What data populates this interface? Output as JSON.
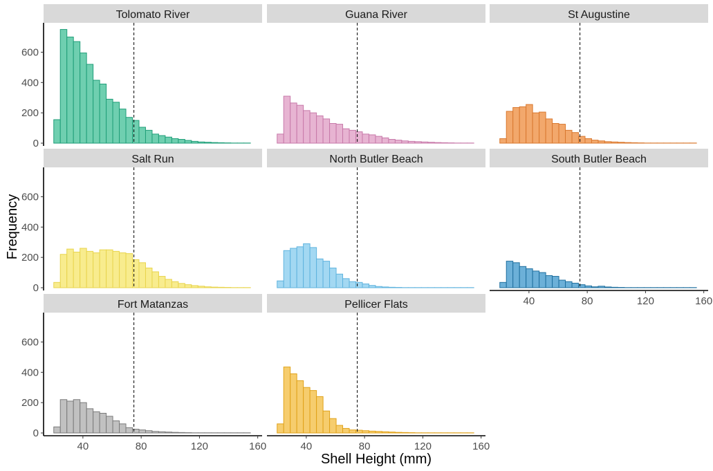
{
  "chart_data": {
    "type": "histogram-facets",
    "xlabel": "Shell Height (mm)",
    "ylabel": "Frequency",
    "xlim": [
      13,
      163
    ],
    "ylim": [
      0,
      780
    ],
    "x_ticks": [
      40,
      80,
      120,
      160
    ],
    "y_ticks": [
      0,
      200,
      400,
      600
    ],
    "bin_start": 20,
    "bin_width": 4.5,
    "reference_line_x": 75,
    "reference_line_style": "dashed",
    "grid": false,
    "legend": "none",
    "panels": [
      {
        "name": "Tolomato River",
        "fill": "#6fcfb0",
        "stroke": "#1f9e78",
        "values": [
          155,
          750,
          700,
          670,
          595,
          520,
          415,
          390,
          290,
          270,
          225,
          170,
          150,
          105,
          85,
          60,
          50,
          40,
          30,
          25,
          18,
          12,
          8,
          6,
          4,
          3,
          2,
          1,
          1,
          1
        ]
      },
      {
        "name": "Guana River",
        "fill": "#e7b4d2",
        "stroke": "#c779a9",
        "values": [
          60,
          310,
          265,
          250,
          215,
          200,
          180,
          160,
          130,
          125,
          95,
          85,
          75,
          60,
          55,
          45,
          35,
          25,
          20,
          15,
          12,
          10,
          8,
          6,
          4,
          3,
          2,
          1,
          1,
          1
        ]
      },
      {
        "name": "St Augustine",
        "fill": "#f2a86c",
        "stroke": "#d9782f",
        "values": [
          30,
          210,
          235,
          240,
          255,
          200,
          205,
          160,
          130,
          125,
          85,
          70,
          45,
          30,
          20,
          15,
          10,
          8,
          6,
          4,
          3,
          2,
          1,
          1,
          1,
          1,
          1,
          1,
          1,
          1
        ]
      },
      {
        "name": "Salt Run",
        "fill": "#f8ec8e",
        "stroke": "#e8d44d",
        "values": [
          35,
          220,
          255,
          235,
          260,
          240,
          230,
          250,
          250,
          240,
          230,
          225,
          185,
          165,
          130,
          105,
          75,
          55,
          40,
          28,
          20,
          14,
          10,
          6,
          4,
          3,
          2,
          1,
          1,
          1
        ]
      },
      {
        "name": "North Butler Beach",
        "fill": "#a3d8f2",
        "stroke": "#5fb3de",
        "values": [
          45,
          245,
          260,
          270,
          290,
          265,
          190,
          175,
          130,
          90,
          60,
          40,
          35,
          25,
          15,
          8,
          5,
          3,
          2,
          1,
          1,
          1,
          1,
          1,
          1,
          1,
          1,
          1,
          1,
          1
        ]
      },
      {
        "name": "South Butler Beach",
        "fill": "#6cb0d8",
        "stroke": "#1f6f9e",
        "values": [
          35,
          175,
          165,
          140,
          125,
          110,
          100,
          80,
          75,
          50,
          40,
          30,
          20,
          12,
          6,
          10,
          5,
          3,
          2,
          1,
          1,
          1,
          1,
          1,
          1,
          1,
          1,
          1,
          1,
          1
        ]
      },
      {
        "name": "Fort Matanzas",
        "fill": "#c1c1c1",
        "stroke": "#7a7a7a",
        "values": [
          40,
          220,
          210,
          220,
          200,
          160,
          140,
          130,
          110,
          80,
          60,
          35,
          25,
          20,
          15,
          10,
          8,
          6,
          4,
          3,
          2,
          1,
          1,
          1,
          1,
          1,
          1,
          1,
          1,
          1
        ]
      },
      {
        "name": "Pellicer Flats",
        "fill": "#f6cd6e",
        "stroke": "#e0a21a",
        "values": [
          60,
          435,
          390,
          345,
          300,
          280,
          240,
          145,
          95,
          50,
          30,
          20,
          18,
          15,
          12,
          10,
          8,
          6,
          4,
          3,
          2,
          1,
          1,
          1,
          1,
          1,
          1,
          1,
          1,
          1
        ]
      }
    ]
  }
}
